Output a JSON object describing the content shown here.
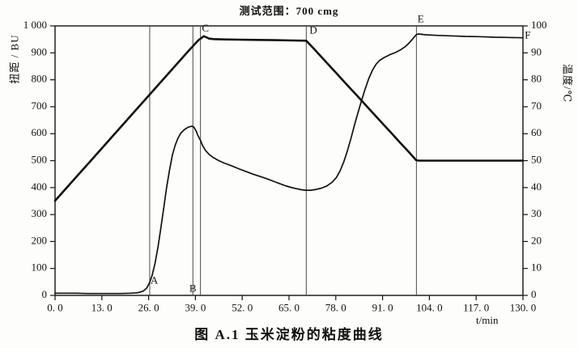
{
  "title": "测试范围：700 cmg",
  "caption": "图 A.1 玉米淀粉的粘度曲线",
  "colors": {
    "ink": "#121212",
    "marker_line": "#4a4a4a",
    "background": "#fdfdfb"
  },
  "axes": {
    "left_label": "扭距 / BU",
    "right_label": "温度/℃",
    "x_label": "t/min",
    "left_ticks": [
      {
        "label": "1 000",
        "v": 1000
      },
      {
        "label": "900",
        "v": 900
      },
      {
        "label": "800",
        "v": 800
      },
      {
        "label": "700",
        "v": 700
      },
      {
        "label": "600",
        "v": 600
      },
      {
        "label": "500",
        "v": 500
      },
      {
        "label": "400",
        "v": 400
      },
      {
        "label": "300",
        "v": 300
      },
      {
        "label": "200",
        "v": 200
      },
      {
        "label": "100",
        "v": 100
      },
      {
        "label": "0",
        "v": 0
      }
    ],
    "right_ticks": [
      {
        "label": "100",
        "v": 100
      },
      {
        "label": "90",
        "v": 90
      },
      {
        "label": "80",
        "v": 80
      },
      {
        "label": "70",
        "v": 70
      },
      {
        "label": "60",
        "v": 60
      },
      {
        "label": "50",
        "v": 50
      },
      {
        "label": "40",
        "v": 40
      },
      {
        "label": "30",
        "v": 30
      },
      {
        "label": "20",
        "v": 20
      },
      {
        "label": "10",
        "v": 10
      },
      {
        "label": "0",
        "v": 0
      }
    ],
    "x_ticks": [
      {
        "label": "0. 0",
        "v": 0
      },
      {
        "label": "13. 0",
        "v": 13
      },
      {
        "label": "26. 0",
        "v": 26
      },
      {
        "label": "39. 0",
        "v": 39
      },
      {
        "label": "52. 0",
        "v": 52
      },
      {
        "label": "65. 0",
        "v": 65
      },
      {
        "label": "78. 0",
        "v": 78
      },
      {
        "label": "91. 0",
        "v": 91
      },
      {
        "label": "104. 0",
        "v": 104
      },
      {
        "label": "117. 0",
        "v": 117
      },
      {
        "label": "130. 0",
        "v": 130
      }
    ]
  },
  "chart_data": {
    "type": "line",
    "title": "测试范围：700 cmg",
    "xlabel": "t/min",
    "ylabel_left": "扭距 / BU",
    "ylabel_right": "温度/℃",
    "xlim": [
      0,
      130
    ],
    "ylim_left": [
      0,
      1000
    ],
    "ylim_right": [
      0,
      100
    ],
    "grid": false,
    "legend": "none",
    "series": [
      {
        "name": "viscosity-torque-BU",
        "axis": "left",
        "stroke_width": 1.7,
        "points": [
          [
            0,
            8
          ],
          [
            3,
            8
          ],
          [
            6,
            8
          ],
          [
            9,
            7
          ],
          [
            12,
            7
          ],
          [
            15,
            7
          ],
          [
            18,
            7
          ],
          [
            21,
            8
          ],
          [
            23,
            10
          ],
          [
            24.5,
            16
          ],
          [
            25.5,
            28
          ],
          [
            26.3,
            48
          ],
          [
            27,
            75
          ],
          [
            27.8,
            120
          ],
          [
            28.6,
            180
          ],
          [
            29.4,
            250
          ],
          [
            30.2,
            325
          ],
          [
            31,
            400
          ],
          [
            31.8,
            465
          ],
          [
            32.6,
            520
          ],
          [
            33.4,
            558
          ],
          [
            34.2,
            585
          ],
          [
            35,
            603
          ],
          [
            36,
            616
          ],
          [
            37,
            624
          ],
          [
            38,
            628
          ],
          [
            38.6,
            624
          ],
          [
            39.2,
            610
          ],
          [
            39.7,
            593
          ],
          [
            40.3,
            578
          ],
          [
            41,
            556
          ],
          [
            41.8,
            538
          ],
          [
            42.8,
            523
          ],
          [
            44,
            511
          ],
          [
            45.5,
            500
          ],
          [
            47,
            491
          ],
          [
            49,
            481
          ],
          [
            51,
            470
          ],
          [
            53,
            460
          ],
          [
            55,
            450
          ],
          [
            57,
            441
          ],
          [
            59,
            432
          ],
          [
            61,
            422
          ],
          [
            62.5,
            414
          ],
          [
            64,
            407
          ],
          [
            65.5,
            401
          ],
          [
            67,
            396
          ],
          [
            68.5,
            392
          ],
          [
            69.8,
            390
          ],
          [
            71,
            390
          ],
          [
            72.5,
            393
          ],
          [
            74,
            398
          ],
          [
            75.5,
            406
          ],
          [
            77,
            420
          ],
          [
            78.2,
            438
          ],
          [
            79.2,
            462
          ],
          [
            80.2,
            495
          ],
          [
            81.2,
            535
          ],
          [
            82.2,
            582
          ],
          [
            83.2,
            632
          ],
          [
            84.2,
            680
          ],
          [
            85.2,
            725
          ],
          [
            86.2,
            768
          ],
          [
            87.2,
            806
          ],
          [
            88.2,
            836
          ],
          [
            89.2,
            858
          ],
          [
            90.2,
            872
          ],
          [
            91.5,
            883
          ],
          [
            93,
            893
          ],
          [
            94.5,
            901
          ],
          [
            96,
            911
          ],
          [
            97.3,
            923
          ],
          [
            98.5,
            938
          ],
          [
            99.5,
            954
          ],
          [
            100.4,
            968
          ],
          [
            101,
            970
          ],
          [
            103,
            967
          ],
          [
            106,
            965
          ],
          [
            110,
            963
          ],
          [
            114,
            961
          ],
          [
            118,
            960
          ],
          [
            122,
            958
          ],
          [
            126,
            957
          ],
          [
            130,
            956
          ]
        ]
      },
      {
        "name": "temperature-C",
        "axis": "right",
        "stroke_width": 2.6,
        "points": [
          [
            0,
            35.1
          ],
          [
            5,
            42.6
          ],
          [
            10,
            50.1
          ],
          [
            15,
            57.6
          ],
          [
            20,
            65.1
          ],
          [
            25,
            72.6
          ],
          [
            30,
            80.1
          ],
          [
            34,
            86.1
          ],
          [
            37,
            90.6
          ],
          [
            39,
            93.5
          ],
          [
            40,
            94.9
          ],
          [
            40.6,
            95.4
          ],
          [
            41.3,
            96.2
          ],
          [
            42,
            95.8
          ],
          [
            42.8,
            95.3
          ],
          [
            44,
            95.1
          ],
          [
            47,
            95.0
          ],
          [
            51,
            94.9
          ],
          [
            56,
            94.8
          ],
          [
            61,
            94.7
          ],
          [
            66,
            94.6
          ],
          [
            69.8,
            94.5
          ],
          [
            72,
            91.4
          ],
          [
            75,
            87.0
          ],
          [
            78,
            82.7
          ],
          [
            81,
            78.3
          ],
          [
            84,
            74.0
          ],
          [
            87,
            69.6
          ],
          [
            90,
            65.2
          ],
          [
            93,
            60.9
          ],
          [
            96,
            56.5
          ],
          [
            98.5,
            52.9
          ],
          [
            100.3,
            50.2
          ],
          [
            101,
            50
          ],
          [
            105,
            50
          ],
          [
            110,
            50
          ],
          [
            115,
            50
          ],
          [
            120,
            50
          ],
          [
            125,
            50
          ],
          [
            130,
            50
          ]
        ]
      }
    ],
    "markers": [
      {
        "label": "A",
        "line_t": 26.3,
        "has_line": true,
        "label_t": 26.5,
        "label_bu": 52
      },
      {
        "label": "B",
        "line_t": 38.3,
        "has_line": true,
        "label_t": 37.3,
        "label_bu": 22
      },
      {
        "label": "C",
        "line_t": 40.4,
        "has_line": true,
        "label_t": 40.8,
        "label_bu": 988
      },
      {
        "label": "D",
        "line_t": 69.8,
        "has_line": true,
        "label_t": 70.7,
        "label_bu": 980
      },
      {
        "label": "E",
        "line_t": 100.4,
        "has_line": true,
        "label_t": 100.7,
        "label_bu": 1022
      },
      {
        "label": "F",
        "has_line": false,
        "label_t": 130.5,
        "label_bu": 962
      }
    ]
  }
}
